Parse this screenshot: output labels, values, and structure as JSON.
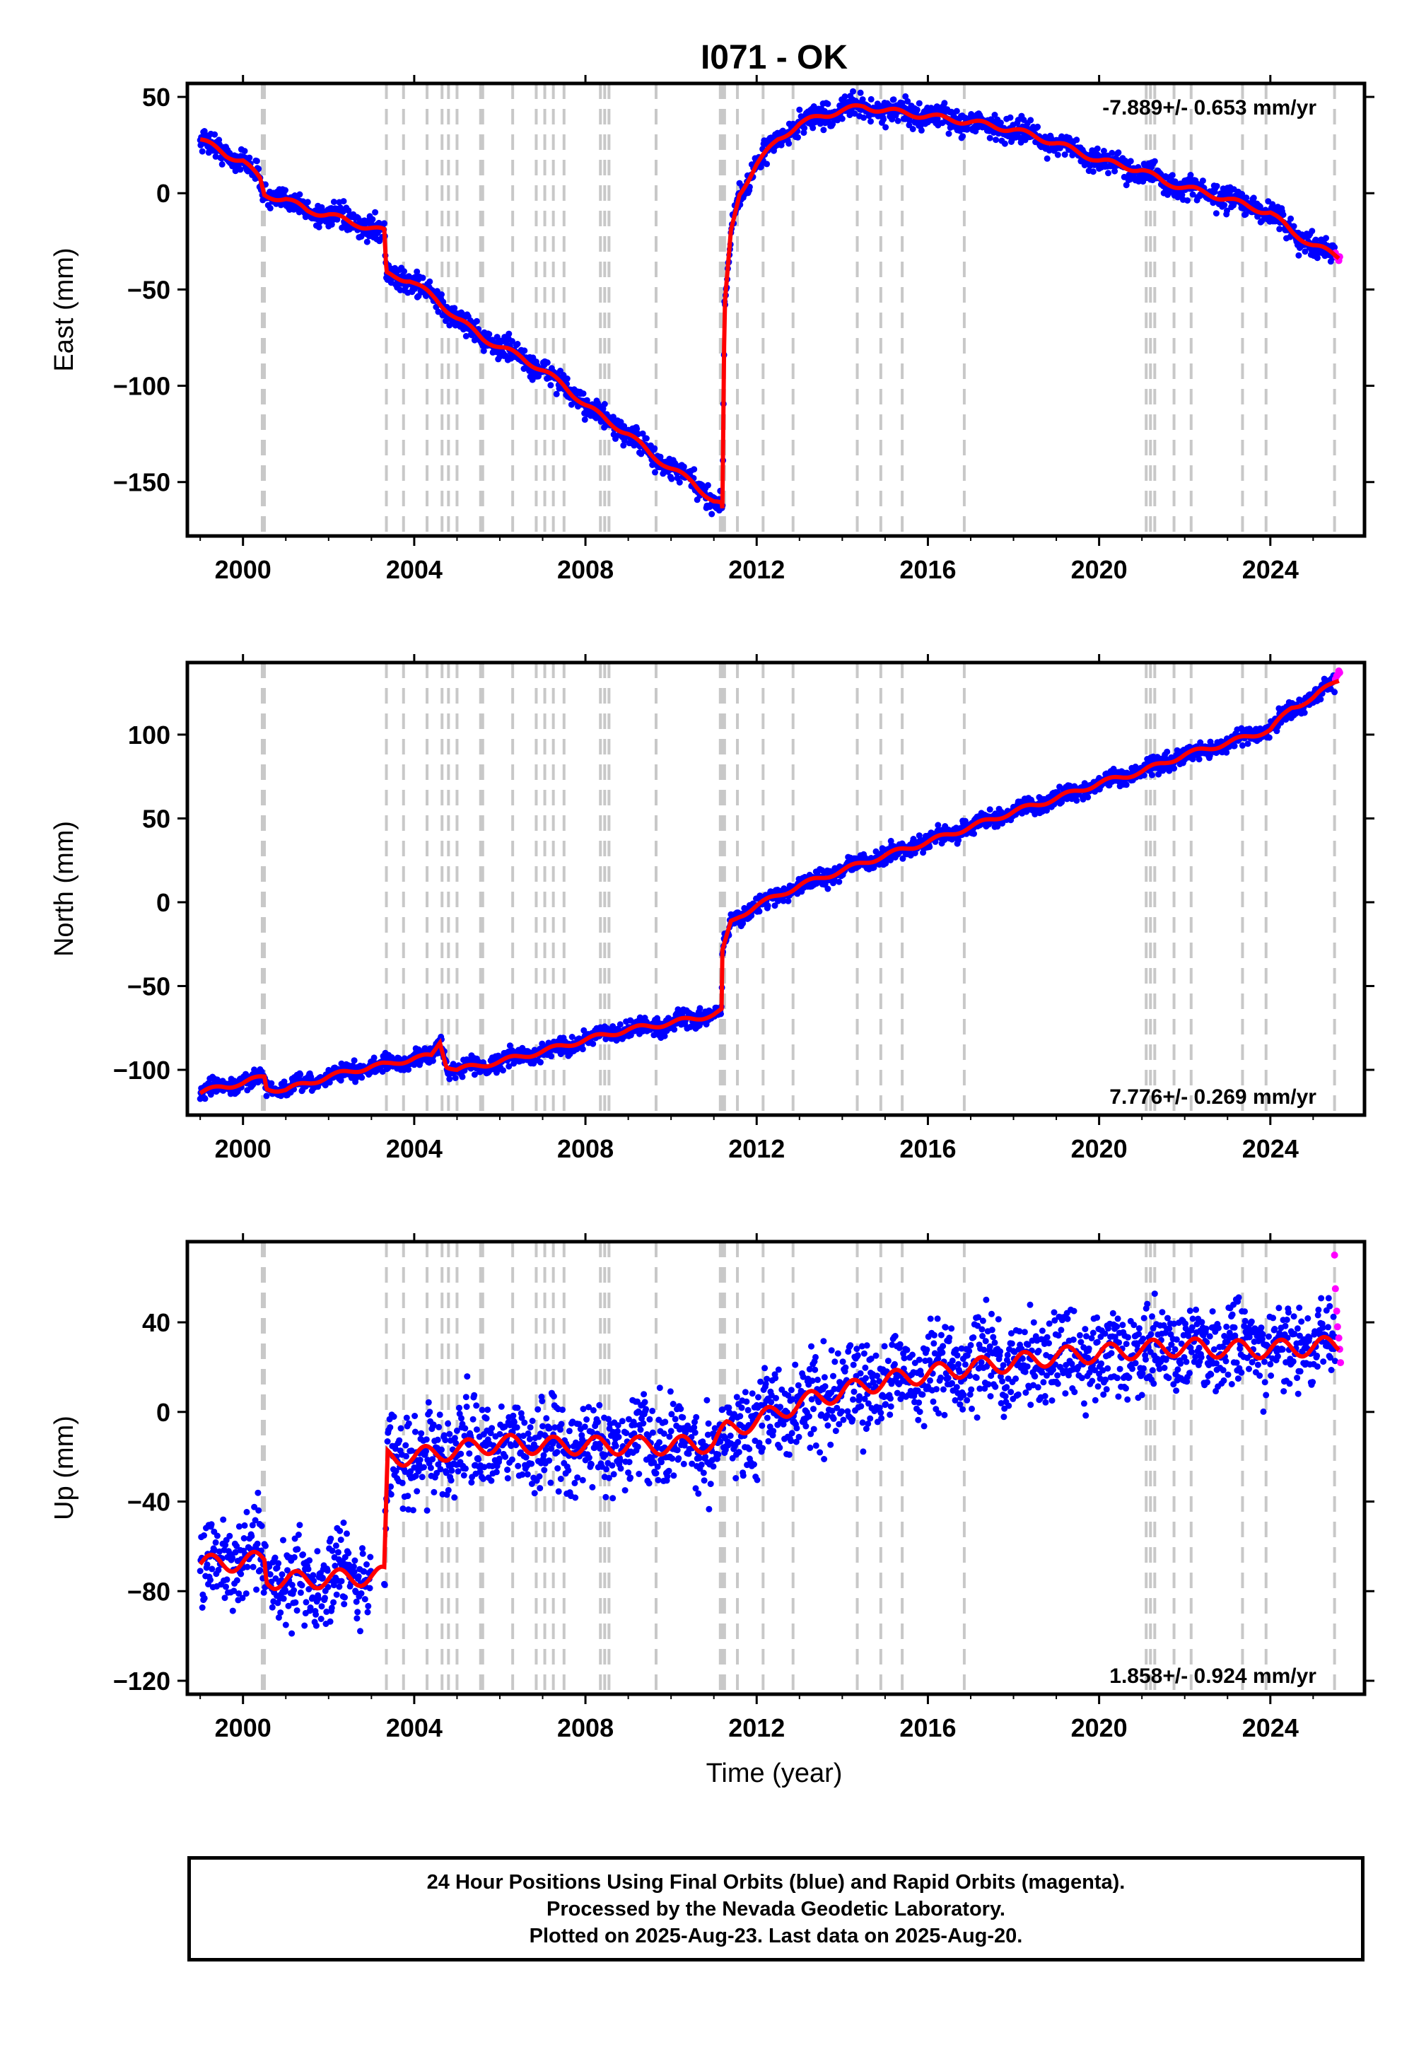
{
  "title": "I071 - OK",
  "xlabel": "Time (year)",
  "colors": {
    "final": "#0000ff",
    "rapid": "#ff00ff",
    "model": "#ff0000",
    "steps": "#c8c8c8"
  },
  "step_years": [
    2000.45,
    2000.5,
    2003.35,
    2003.75,
    2004.3,
    2004.65,
    2004.8,
    2005.0,
    2005.55,
    2005.6,
    2006.3,
    2006.85,
    2007.05,
    2007.25,
    2007.5,
    2008.35,
    2008.45,
    2008.55,
    2009.65,
    2011.15,
    2011.2,
    2011.25,
    2011.55,
    2012.15,
    2012.85,
    2014.35,
    2014.9,
    2015.4,
    2016.85,
    2021.1,
    2021.2,
    2021.3,
    2021.75,
    2022.15,
    2023.35,
    2023.9,
    2025.5
  ],
  "chart_data": [
    {
      "type": "scatter",
      "title": "I071 - OK",
      "ylabel": "East (mm)",
      "xlabel": "",
      "xlim": [
        1998.7,
        2026.2
      ],
      "ylim": [
        -178,
        57
      ],
      "xticks": [
        2000,
        2004,
        2008,
        2012,
        2016,
        2020,
        2024
      ],
      "yticks": [
        50,
        0,
        -50,
        -100,
        -150
      ],
      "ytick_labels": [
        "50",
        "0",
        "−50",
        "−100",
        "−150"
      ],
      "rate_label": "-7.889+/- 0.653 mm/yr",
      "rate_position": "top-right",
      "noise": 3,
      "model": {
        "x": [
          1999.0,
          1999.6,
          2000.0,
          2000.4,
          2000.5,
          2001.0,
          2001.5,
          2002.0,
          2002.5,
          2003.0,
          2003.3,
          2003.35,
          2003.9,
          2004.5,
          2005.0,
          2005.6,
          2006.0,
          2006.5,
          2007.0,
          2007.5,
          2008.0,
          2008.5,
          2009.0,
          2009.5,
          2010.0,
          2010.5,
          2011.0,
          2011.18,
          2011.2,
          2011.25,
          2011.4,
          2011.6,
          2012.0,
          2012.5,
          2013.0,
          2013.5,
          2014.0,
          2014.5,
          2015.0,
          2016.0,
          2017.0,
          2018.0,
          2019.0,
          2020.0,
          2021.0,
          2021.5,
          2022.0,
          2022.5,
          2023.0,
          2023.5,
          2024.0,
          2024.5,
          2025.0,
          2025.6
        ],
        "y": [
          28,
          20,
          17,
          7,
          -1,
          -3,
          -9,
          -11,
          -15,
          -18,
          -20,
          -42,
          -45,
          -55,
          -65,
          -75,
          -80,
          -85,
          -92,
          -100,
          -110,
          -118,
          -125,
          -135,
          -143,
          -150,
          -160,
          -162,
          -165,
          -60,
          -20,
          0,
          15,
          28,
          36,
          40,
          43,
          45,
          43,
          40,
          37,
          33,
          26,
          17,
          12,
          6,
          3,
          0,
          -3,
          -7,
          -10,
          -20,
          -27,
          -33
        ]
      },
      "rapid": {
        "x": [
          2025.52,
          2025.55,
          2025.58,
          2025.6,
          2025.62
        ],
        "y": [
          -31,
          -33,
          -34,
          -35,
          -33
        ]
      }
    },
    {
      "type": "scatter",
      "title": "",
      "ylabel": "North (mm)",
      "xlabel": "",
      "xlim": [
        1998.7,
        2026.2
      ],
      "ylim": [
        -127,
        143
      ],
      "xticks": [
        2000,
        2004,
        2008,
        2012,
        2016,
        2020,
        2024
      ],
      "yticks": [
        100,
        50,
        0,
        -50,
        -100
      ],
      "ytick_labels": [
        "100",
        "50",
        "0",
        "−50",
        "−100"
      ],
      "rate_label": "7.776+/- 0.269 mm/yr",
      "rate_position": "bottom-right",
      "noise": 2.5,
      "model": {
        "x": [
          1999.0,
          1999.5,
          2000.0,
          2000.5,
          2000.55,
          2001.0,
          2001.5,
          2002.0,
          2003.0,
          2003.35,
          2004.0,
          2004.4,
          2004.6,
          2004.75,
          2005.0,
          2005.6,
          2006.0,
          2007.0,
          2008.0,
          2009.0,
          2010.0,
          2011.0,
          2011.18,
          2011.2,
          2011.4,
          2011.6,
          2012.0,
          2012.5,
          2013.0,
          2014.0,
          2015.0,
          2016.0,
          2017.0,
          2018.0,
          2019.0,
          2020.0,
          2021.0,
          2022.0,
          2023.0,
          2024.0,
          2024.5,
          2025.0,
          2025.6
        ],
        "y": [
          -114,
          -110,
          -108,
          -104,
          -111,
          -112,
          -108,
          -104,
          -98,
          -97,
          -93,
          -92,
          -83,
          -97,
          -100,
          -97,
          -95,
          -89,
          -82,
          -76,
          -72,
          -67,
          -65,
          -30,
          -12,
          -8,
          -2,
          4,
          10,
          19,
          28,
          36,
          45,
          54,
          62,
          71,
          78,
          88,
          95,
          103,
          116,
          122,
          133
        ]
      },
      "rapid": {
        "x": [
          2025.52,
          2025.55,
          2025.58,
          2025.6,
          2025.62
        ],
        "y": [
          133,
          135,
          136,
          138,
          137
        ]
      }
    },
    {
      "type": "scatter",
      "title": "",
      "ylabel": "Up (mm)",
      "xlabel": "Time (year)",
      "xlim": [
        1998.7,
        2026.2
      ],
      "ylim": [
        -126,
        76
      ],
      "xticks": [
        2000,
        2004,
        2008,
        2012,
        2016,
        2020,
        2024
      ],
      "yticks": [
        40,
        0,
        -40,
        -80,
        -120
      ],
      "ytick_labels": [
        "40",
        "0",
        "−40",
        "−80",
        "−120"
      ],
      "rate_label": "1.858+/- 0.924 mm/yr",
      "rate_position": "bottom-right",
      "noise": 9,
      "model": {
        "x": [
          1999.0,
          2000.0,
          2000.5,
          2000.55,
          2001.5,
          2002.5,
          2003.3,
          2003.38,
          2004.0,
          2005.0,
          2006.0,
          2007.0,
          2008.0,
          2009.0,
          2010.0,
          2011.0,
          2011.3,
          2012.0,
          2013.0,
          2014.0,
          2015.0,
          2016.0,
          2017.0,
          2018.0,
          2019.0,
          2020.0,
          2021.0,
          2022.0,
          2023.0,
          2024.0,
          2025.0,
          2025.6
        ],
        "y": [
          -68,
          -67,
          -66,
          -75,
          -75,
          -74,
          -73,
          -20,
          -20,
          -17,
          -14,
          -15,
          -15,
          -15,
          -15,
          -14,
          -8,
          -4,
          4,
          9,
          14,
          17,
          20,
          22,
          25,
          26,
          28,
          29,
          28,
          28,
          29,
          30
        ]
      },
      "seasonal_amplitude": 4,
      "rapid": {
        "x": [
          2025.5,
          2025.52,
          2025.55,
          2025.57,
          2025.6,
          2025.62,
          2025.64
        ],
        "y": [
          70,
          55,
          45,
          38,
          33,
          28,
          22
        ]
      }
    }
  ],
  "footer": {
    "line1": "24 Hour Positions Using Final Orbits (blue) and Rapid Orbits (magenta).",
    "line2": "Processed by the Nevada Geodetic Laboratory.",
    "line3": "Plotted on 2025-Aug-23. Last data on 2025-Aug-20."
  }
}
